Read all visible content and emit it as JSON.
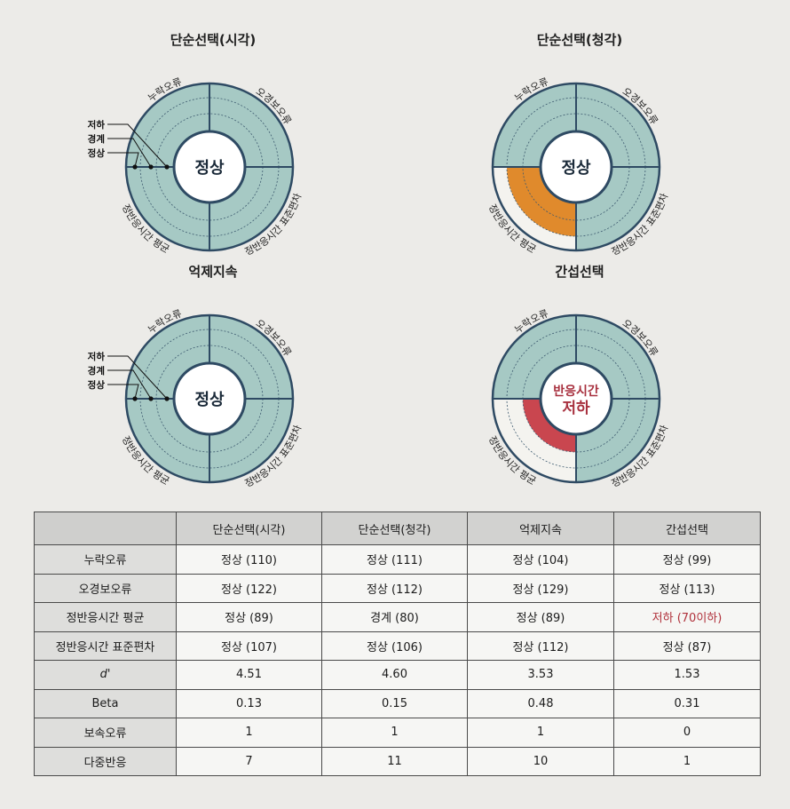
{
  "charts": [
    {
      "title": "단순선택(시각)",
      "center": [
        "정상"
      ],
      "center_color": "#1c2b3a",
      "quadrants": {
        "top_left": "누락오류",
        "top_right": "오경보오류",
        "bottom_right": "정반응시간 표준편차",
        "bottom_left": "정반응시간 평균"
      },
      "legend": [
        "저하",
        "경계",
        "정상"
      ],
      "fills": {
        "top_left": "normal",
        "top_right": "normal",
        "bottom_right": "normal",
        "bottom_left": "normal"
      },
      "highlight": null
    },
    {
      "title": "단순선택(청각)",
      "center": [
        "정상"
      ],
      "center_color": "#1c2b3a",
      "quadrants": {
        "top_left": "누락오류",
        "top_right": "오경보오류",
        "bottom_right": "정반응시간 표준편차",
        "bottom_left": "정반응시간 평균"
      },
      "legend": [],
      "fills": {
        "top_left": "normal",
        "top_right": "normal",
        "bottom_right": "normal",
        "bottom_left": "warning"
      },
      "highlight": {
        "quadrant": "bottom_left",
        "level": "경계",
        "color": "#e08a2c"
      }
    },
    {
      "title": "억제지속",
      "center": [
        "정상"
      ],
      "center_color": "#1c2b3a",
      "quadrants": {
        "top_left": "누락오류",
        "top_right": "오경보오류",
        "bottom_right": "정반응시간 표준편차",
        "bottom_left": "정반응시간 평균"
      },
      "legend": [
        "저하",
        "경계",
        "정상"
      ],
      "fills": {
        "top_left": "normal",
        "top_right": "normal",
        "bottom_right": "normal",
        "bottom_left": "normal"
      },
      "highlight": null
    },
    {
      "title": "간섭선택",
      "center": [
        "반응시간",
        "저하"
      ],
      "center_color": "#a8313f",
      "quadrants": {
        "top_left": "누락오류",
        "top_right": "오경보오류",
        "bottom_right": "정반응시간 표준편차",
        "bottom_left": "정반응시간 평균"
      },
      "legend": [],
      "fills": {
        "top_left": "normal",
        "top_right": "normal",
        "bottom_right": "normal",
        "bottom_left": "low"
      },
      "highlight": {
        "quadrant": "bottom_left",
        "level": "저하",
        "color": "#c9464f"
      }
    }
  ],
  "colors": {
    "normal_fill": "#a6c9c4",
    "ring_stroke": "#2e4a63",
    "empty_fill": "#f4f3ef"
  },
  "table": {
    "columns": [
      "",
      "단순선택(시각)",
      "단순선택(청각)",
      "억제지속",
      "간섭선택"
    ],
    "rows": [
      {
        "label": "누락오류",
        "cells": [
          "정상 (110)",
          "정상 (111)",
          "정상 (104)",
          "정상 (99)"
        ]
      },
      {
        "label": "오경보오류",
        "cells": [
          "정상 (122)",
          "정상 (112)",
          "정상 (129)",
          "정상 (113)"
        ]
      },
      {
        "label": "정반응시간 평균",
        "cells": [
          "정상 (89)",
          "경계 (80)",
          "정상 (89)",
          "저하 (70이하)"
        ]
      },
      {
        "label": "정반응시간 표준편차",
        "cells": [
          "정상 (107)",
          "정상 (106)",
          "정상 (112)",
          "정상 (87)"
        ]
      },
      {
        "label": "d'",
        "cells": [
          "4.51",
          "4.60",
          "3.53",
          "1.53"
        ]
      },
      {
        "label": "Beta",
        "cells": [
          "0.13",
          "0.15",
          "0.48",
          "0.31"
        ]
      },
      {
        "label": "보속오류",
        "cells": [
          "1",
          "1",
          "1",
          "0"
        ]
      },
      {
        "label": "다중반응",
        "cells": [
          "7",
          "11",
          "10",
          "1"
        ]
      }
    ],
    "warn_color": "#b0313b"
  }
}
